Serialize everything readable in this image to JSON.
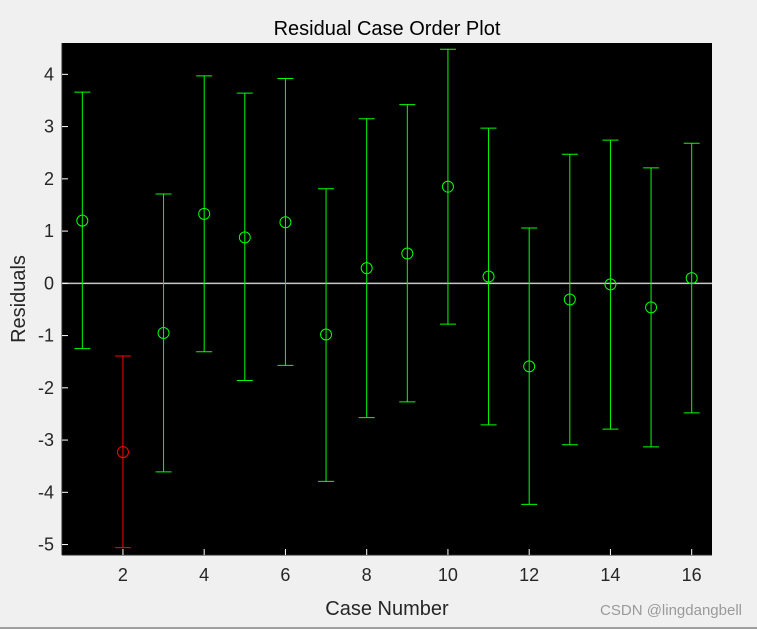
{
  "chart_data": {
    "type": "scatter",
    "title": "Residual Case Order Plot",
    "xlabel": "Case Number",
    "ylabel": "Residuals",
    "xlim": [
      0.5,
      16.5
    ],
    "ylim": [
      -5.2,
      4.6
    ],
    "x_ticks": [
      2,
      4,
      6,
      8,
      10,
      12,
      14,
      16
    ],
    "y_ticks": [
      -5,
      -4,
      -3,
      -2,
      -1,
      0,
      1,
      2,
      3,
      4
    ],
    "grid": false,
    "background": "#000000",
    "zero_line_color": "#c8c8c8",
    "normal_color": "#00ff00",
    "outlier_color": "#ff0000",
    "cases": [
      {
        "x": 1,
        "residual": 1.2,
        "lower": -1.25,
        "upper": 3.66,
        "outlier": false
      },
      {
        "x": 2,
        "residual": -3.23,
        "lower": -5.06,
        "upper": -1.39,
        "outlier": true
      },
      {
        "x": 3,
        "residual": -0.95,
        "lower": -3.61,
        "upper": 1.71,
        "outlier": false
      },
      {
        "x": 4,
        "residual": 1.33,
        "lower": -1.31,
        "upper": 3.97,
        "outlier": false
      },
      {
        "x": 5,
        "residual": 0.88,
        "lower": -1.86,
        "upper": 3.64,
        "outlier": false
      },
      {
        "x": 6,
        "residual": 1.17,
        "lower": -1.57,
        "upper": 3.92,
        "outlier": false
      },
      {
        "x": 7,
        "residual": -0.98,
        "lower": -3.79,
        "upper": 1.81,
        "outlier": false
      },
      {
        "x": 8,
        "residual": 0.29,
        "lower": -2.57,
        "upper": 3.15,
        "outlier": false
      },
      {
        "x": 9,
        "residual": 0.57,
        "lower": -2.27,
        "upper": 3.42,
        "outlier": false
      },
      {
        "x": 10,
        "residual": 1.85,
        "lower": -0.78,
        "upper": 4.48,
        "outlier": false
      },
      {
        "x": 11,
        "residual": 0.13,
        "lower": -2.71,
        "upper": 2.97,
        "outlier": false
      },
      {
        "x": 12,
        "residual": -1.59,
        "lower": -4.23,
        "upper": 1.06,
        "outlier": false
      },
      {
        "x": 13,
        "residual": -0.31,
        "lower": -3.09,
        "upper": 2.47,
        "outlier": false
      },
      {
        "x": 14,
        "residual": -0.02,
        "lower": -2.79,
        "upper": 2.74,
        "outlier": false
      },
      {
        "x": 15,
        "residual": -0.46,
        "lower": -3.13,
        "upper": 2.21,
        "outlier": false
      },
      {
        "x": 16,
        "residual": 0.1,
        "lower": -2.48,
        "upper": 2.68,
        "outlier": false
      }
    ]
  },
  "watermark": "CSDN @lingdangbell"
}
